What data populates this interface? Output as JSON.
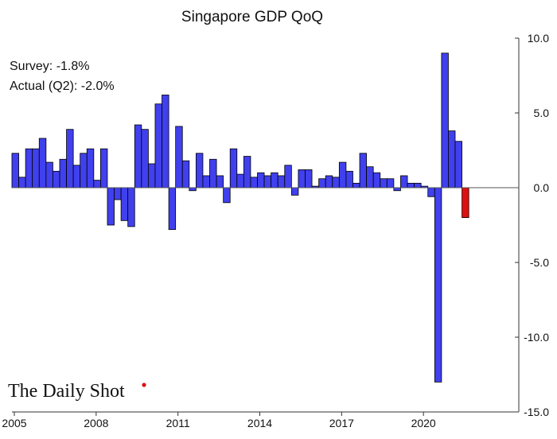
{
  "chart_data": {
    "type": "bar",
    "title": "Singapore GDP QoQ",
    "xlabel": "",
    "ylabel": "",
    "ylim": [
      -15,
      10
    ],
    "y_ticks": [
      "10.0",
      "5.0",
      "0.0",
      "-5.0",
      "-10.0",
      "-15.0"
    ],
    "y_tick_values": [
      10,
      5,
      0,
      -5,
      -10,
      -15
    ],
    "y_axis_side": "right",
    "x_ticks": [
      "2005",
      "2008",
      "2011",
      "2014",
      "2017",
      "2020"
    ],
    "x_tick_years": [
      2005,
      2008,
      2011,
      2014,
      2017,
      2020
    ],
    "first_quarter": "2005Q1",
    "grid": false,
    "annotations": [
      "Survey: -1.8%",
      "Actual (Q2):  -2.0%"
    ],
    "colors": {
      "bar": "#4040ee",
      "highlight": "#dd1111",
      "outline": "#000000"
    },
    "highlight_last": true,
    "values": [
      2.3,
      0.7,
      2.6,
      2.6,
      3.3,
      1.7,
      1.1,
      1.9,
      3.9,
      1.5,
      2.3,
      2.6,
      0.5,
      2.6,
      -2.5,
      -0.8,
      -2.2,
      -2.6,
      4.2,
      3.9,
      1.6,
      5.6,
      6.2,
      -2.8,
      4.1,
      1.8,
      -0.2,
      2.3,
      0.8,
      1.9,
      0.8,
      -1.0,
      2.6,
      0.9,
      2.1,
      0.7,
      1.0,
      0.8,
      1.0,
      0.8,
      1.5,
      -0.5,
      1.2,
      1.2,
      0.1,
      0.6,
      0.8,
      0.7,
      1.7,
      1.1,
      0.3,
      2.3,
      1.4,
      1.0,
      0.6,
      0.6,
      -0.2,
      0.8,
      0.3,
      0.3,
      0.1,
      -0.6,
      -13.0,
      9.0,
      3.8,
      3.1,
      -2.0
    ]
  },
  "branding": {
    "logo_text": "The Daily Shot"
  }
}
